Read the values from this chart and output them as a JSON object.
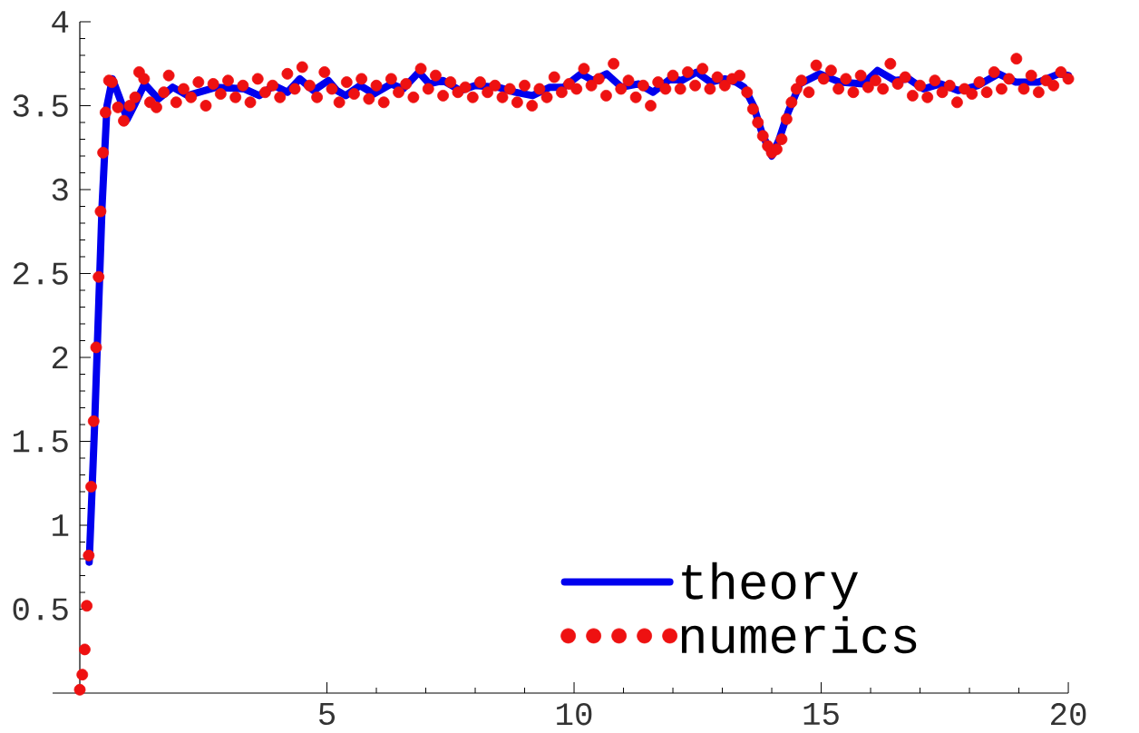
{
  "chart_data": {
    "type": "line",
    "xlim": [
      -0.55,
      20
    ],
    "ylim": [
      0,
      4
    ],
    "xticks": [
      5,
      10,
      15,
      20
    ],
    "yticks": [
      0.5,
      1,
      1.5,
      2,
      2.5,
      3,
      3.5,
      4
    ],
    "legend": "bottom right",
    "grid": false,
    "series": [
      {
        "name": "theory",
        "color": "#0000ee",
        "x": [
          0.19,
          0.3,
          0.45,
          0.55,
          0.66,
          0.8,
          0.96,
          1.1,
          1.31,
          1.59,
          1.88,
          2.18,
          2.76,
          3.33,
          3.63,
          3.93,
          4.2,
          4.45,
          4.73,
          5.03,
          5.2,
          5.38,
          5.67,
          5.95,
          6.3,
          6.54,
          6.86,
          7.07,
          7.35,
          7.7,
          8.0,
          8.46,
          8.81,
          9.16,
          9.51,
          9.79,
          10.14,
          10.38,
          10.66,
          10.96,
          11.31,
          11.6,
          11.95,
          12.18,
          12.48,
          12.76,
          13.05,
          13.28,
          13.44,
          13.63,
          13.8,
          14.0,
          14.15,
          14.33,
          14.57,
          14.97,
          15.38,
          15.85,
          16.14,
          16.49,
          16.77,
          17.07,
          17.42,
          17.77,
          18.17,
          18.59,
          18.94,
          19.39,
          19.81,
          20.0
        ],
        "values": [
          0.78,
          1.6,
          2.9,
          3.5,
          3.66,
          3.55,
          3.42,
          3.5,
          3.63,
          3.54,
          3.61,
          3.56,
          3.61,
          3.6,
          3.56,
          3.62,
          3.58,
          3.66,
          3.59,
          3.65,
          3.59,
          3.56,
          3.62,
          3.57,
          3.63,
          3.6,
          3.7,
          3.63,
          3.65,
          3.59,
          3.62,
          3.61,
          3.58,
          3.56,
          3.61,
          3.61,
          3.69,
          3.65,
          3.69,
          3.61,
          3.63,
          3.58,
          3.66,
          3.65,
          3.7,
          3.64,
          3.66,
          3.64,
          3.61,
          3.5,
          3.34,
          3.2,
          3.3,
          3.46,
          3.63,
          3.69,
          3.64,
          3.63,
          3.71,
          3.65,
          3.66,
          3.6,
          3.63,
          3.59,
          3.62,
          3.69,
          3.64,
          3.64,
          3.69,
          3.68
        ]
      },
      {
        "name": "numerics",
        "type": "scatter",
        "color": "#ee1111",
        "x": [
          0,
          0.05,
          0.1,
          0.14,
          0.18,
          0.23,
          0.28,
          0.33,
          0.38,
          0.42,
          0.47,
          0.52,
          0.59,
          0.65,
          0.77,
          0.89,
          1.01,
          1.12,
          1.2,
          1.3,
          1.42,
          1.55,
          1.7,
          1.8,
          1.95,
          2.1,
          2.25,
          2.4,
          2.55,
          2.7,
          2.85,
          3.0,
          3.15,
          3.3,
          3.45,
          3.6,
          3.75,
          3.9,
          4.05,
          4.2,
          4.35,
          4.5,
          4.65,
          4.8,
          4.95,
          5.1,
          5.25,
          5.4,
          5.55,
          5.7,
          5.85,
          6.0,
          6.15,
          6.3,
          6.45,
          6.6,
          6.75,
          6.9,
          7.05,
          7.2,
          7.35,
          7.5,
          7.65,
          7.8,
          7.95,
          8.1,
          8.25,
          8.4,
          8.55,
          8.7,
          8.85,
          9.0,
          9.15,
          9.3,
          9.45,
          9.6,
          9.75,
          9.9,
          10.05,
          10.2,
          10.35,
          10.5,
          10.65,
          10.8,
          10.95,
          11.1,
          11.25,
          11.4,
          11.55,
          11.7,
          11.85,
          12.0,
          12.15,
          12.3,
          12.45,
          12.6,
          12.75,
          12.9,
          13.05,
          13.2,
          13.35,
          13.5,
          13.62,
          13.72,
          13.82,
          13.92,
          14.0,
          14.1,
          14.2,
          14.3,
          14.4,
          14.5,
          14.6,
          14.75,
          14.9,
          15.05,
          15.2,
          15.35,
          15.5,
          15.65,
          15.8,
          15.95,
          16.1,
          16.25,
          16.4,
          16.55,
          16.7,
          16.85,
          17.0,
          17.15,
          17.3,
          17.45,
          17.6,
          17.75,
          17.9,
          18.05,
          18.2,
          18.35,
          18.5,
          18.65,
          18.8,
          18.95,
          19.1,
          19.25,
          19.4,
          19.55,
          19.7,
          19.85,
          20.0
        ],
        "values": [
          0.02,
          0.11,
          0.26,
          0.52,
          0.82,
          1.23,
          1.62,
          2.06,
          2.48,
          2.87,
          3.22,
          3.46,
          3.65,
          3.64,
          3.49,
          3.41,
          3.5,
          3.55,
          3.7,
          3.66,
          3.52,
          3.49,
          3.58,
          3.68,
          3.52,
          3.6,
          3.55,
          3.64,
          3.5,
          3.63,
          3.57,
          3.65,
          3.55,
          3.62,
          3.52,
          3.66,
          3.58,
          3.62,
          3.55,
          3.69,
          3.6,
          3.73,
          3.62,
          3.55,
          3.7,
          3.6,
          3.52,
          3.64,
          3.57,
          3.66,
          3.54,
          3.62,
          3.52,
          3.66,
          3.58,
          3.63,
          3.55,
          3.72,
          3.6,
          3.68,
          3.56,
          3.64,
          3.58,
          3.61,
          3.55,
          3.64,
          3.58,
          3.62,
          3.55,
          3.6,
          3.52,
          3.62,
          3.5,
          3.6,
          3.55,
          3.67,
          3.58,
          3.63,
          3.6,
          3.72,
          3.62,
          3.66,
          3.56,
          3.75,
          3.6,
          3.65,
          3.55,
          3.62,
          3.5,
          3.64,
          3.6,
          3.68,
          3.6,
          3.7,
          3.62,
          3.72,
          3.6,
          3.67,
          3.62,
          3.66,
          3.68,
          3.58,
          3.48,
          3.4,
          3.32,
          3.26,
          3.22,
          3.24,
          3.3,
          3.42,
          3.52,
          3.6,
          3.65,
          3.58,
          3.74,
          3.66,
          3.71,
          3.6,
          3.66,
          3.58,
          3.68,
          3.61,
          3.65,
          3.6,
          3.75,
          3.63,
          3.67,
          3.56,
          3.62,
          3.55,
          3.65,
          3.58,
          3.62,
          3.52,
          3.6,
          3.57,
          3.64,
          3.58,
          3.7,
          3.6,
          3.66,
          3.78,
          3.6,
          3.68,
          3.58,
          3.65,
          3.62,
          3.7,
          3.66
        ]
      }
    ]
  }
}
